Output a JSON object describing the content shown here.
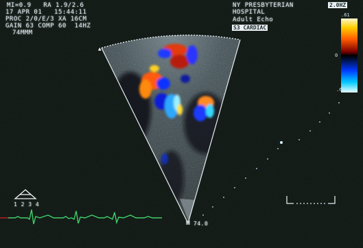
{
  "overlay": {
    "line1": "MI=0.9   RA 1.9/2.6",
    "line2": "17 APR 01   15:44:11",
    "line3": "PROC 2/0/E/3 XA 16CM",
    "line4": "GAIN 63 COMP 60  14HZ",
    "line5": "74MMM",
    "hospital_line1": "NY PRESBYTERIAN",
    "hospital_line2": "HOSPITAL",
    "exam": "Adult Echo",
    "preset_tag": "S3 CARDIAC",
    "corner_tag": "2.0HZ",
    "scale_top": ".61",
    "scale_mid": "0",
    "scale_bottom": ".61",
    "depth_marks": "1 2 3 4",
    "apex_label": "74.0"
  },
  "colors": {
    "background": "#0c1410",
    "ecg_trace": "#3fd06a",
    "sector_outline": "#e8eef0",
    "ruler": "#9fb8c8"
  },
  "icons": [
    "probe-orientation-icon",
    "focus-bracket-icon"
  ]
}
